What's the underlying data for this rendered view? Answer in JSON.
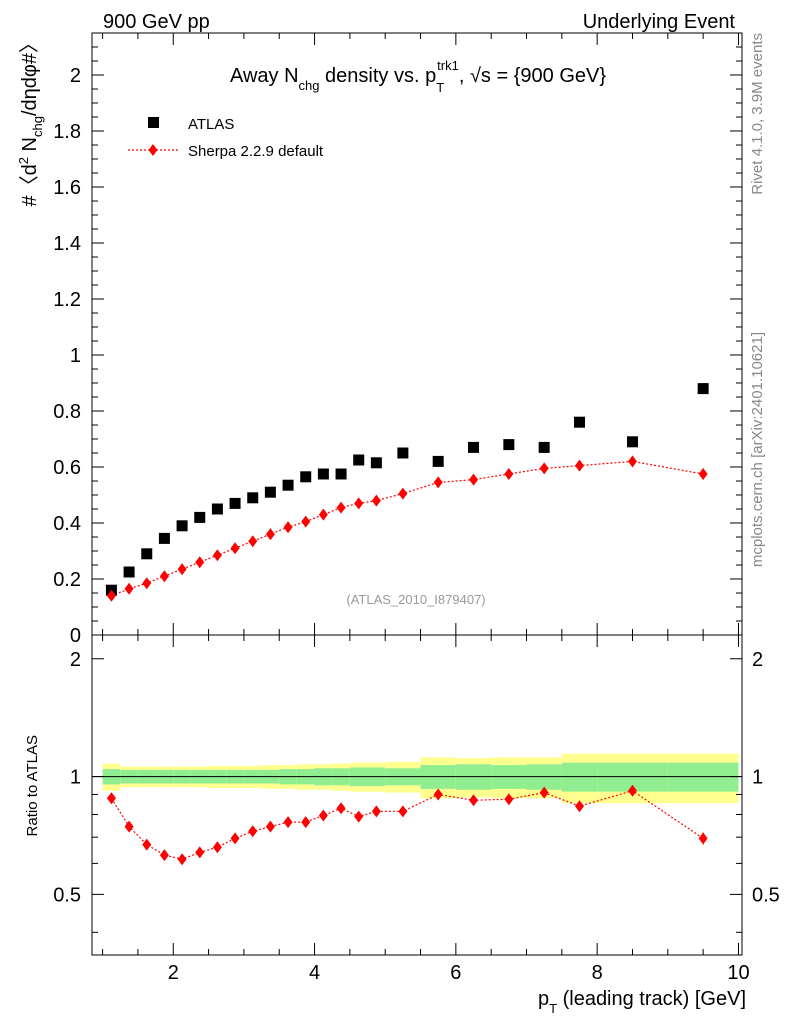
{
  "header": {
    "left": "900 GeV pp",
    "right": "Underlying Event"
  },
  "side_text": {
    "rivet": "Rivet 4.1.0,  3.9M events",
    "mcplots": "mcplots.cern.ch [arXiv:2401.10621]"
  },
  "chart_data": {
    "type": "scatter",
    "title": {
      "pre": "Away N",
      "nsub": "chg",
      "mid": " density vs. p",
      "psup": "trk1",
      "psub": "T",
      "post": ", √s = {900 GeV}"
    },
    "ylabel": {
      "pre": "#〈d",
      "sup": "2",
      "mid": " N",
      "sub": "chg",
      "post": "/dηdφ#〉"
    },
    "xlabel": {
      "p": "p",
      "sub": "T",
      "rest": " (leading track) [GeV]"
    },
    "ratio_ylabel": "Ratio to ATLAS",
    "watermark": "(ATLAS_2010_I879407)",
    "xlim": [
      0.85,
      10.05
    ],
    "ylim": [
      0,
      2.15
    ],
    "ratio_ylim": [
      0.35,
      2.3
    ],
    "x_ticks": [
      2,
      4,
      6,
      8,
      10
    ],
    "y_ticks": [
      0,
      0.2,
      0.4,
      0.6,
      0.8,
      1,
      1.2,
      1.4,
      1.6,
      1.8,
      2
    ],
    "ratio_ticks": [
      0.5,
      1,
      2
    ],
    "legend": [
      {
        "name": "ATLAS",
        "marker": "square",
        "color": "#000000"
      },
      {
        "name": "Sherpa 2.2.9 default",
        "marker": "diamond",
        "color": "#ff0000"
      }
    ],
    "bins": [
      [
        1.0,
        1.25
      ],
      [
        1.25,
        1.5
      ],
      [
        1.5,
        1.75
      ],
      [
        1.75,
        2.0
      ],
      [
        2.0,
        2.25
      ],
      [
        2.25,
        2.5
      ],
      [
        2.5,
        2.75
      ],
      [
        2.75,
        3.0
      ],
      [
        3.0,
        3.25
      ],
      [
        3.25,
        3.5
      ],
      [
        3.5,
        3.75
      ],
      [
        3.75,
        4.0
      ],
      [
        4.0,
        4.25
      ],
      [
        4.25,
        4.5
      ],
      [
        4.5,
        4.75
      ],
      [
        4.75,
        5.0
      ],
      [
        5.0,
        5.5
      ],
      [
        5.5,
        6.0
      ],
      [
        6.0,
        6.5
      ],
      [
        6.5,
        7.0
      ],
      [
        7.0,
        7.5
      ],
      [
        7.5,
        8.0
      ],
      [
        8.0,
        9.0
      ],
      [
        9.0,
        10.0
      ]
    ],
    "x": [
      1.125,
      1.375,
      1.625,
      1.875,
      2.125,
      2.375,
      2.625,
      2.875,
      3.125,
      3.375,
      3.625,
      3.875,
      4.125,
      4.375,
      4.625,
      4.875,
      5.25,
      5.75,
      6.25,
      6.75,
      7.25,
      7.75,
      8.5,
      9.5
    ],
    "series": [
      {
        "name": "ATLAS",
        "values": [
          0.16,
          0.225,
          0.29,
          0.345,
          0.39,
          0.42,
          0.45,
          0.47,
          0.49,
          0.51,
          0.535,
          0.565,
          0.575,
          0.575,
          0.625,
          0.615,
          0.65,
          0.62,
          0.67,
          0.68,
          0.67,
          0.76,
          0.69,
          0.88
        ]
      },
      {
        "name": "Sherpa 2.2.9 default",
        "values": [
          0.14,
          0.165,
          0.185,
          0.21,
          0.235,
          0.26,
          0.285,
          0.31,
          0.335,
          0.36,
          0.385,
          0.405,
          0.43,
          0.455,
          0.47,
          0.48,
          0.505,
          0.545,
          0.555,
          0.575,
          0.595,
          0.605,
          0.62,
          0.575
        ],
        "errors": [
          0.012,
          0.008,
          0.006,
          0.006,
          0.006,
          0.006,
          0.006,
          0.006,
          0.006,
          0.006,
          0.006,
          0.006,
          0.006,
          0.006,
          0.006,
          0.006,
          0.006,
          0.008,
          0.008,
          0.01,
          0.01,
          0.012,
          0.012,
          0.02
        ]
      }
    ],
    "ratio": {
      "values": [
        0.88,
        0.745,
        0.67,
        0.63,
        0.615,
        0.64,
        0.66,
        0.695,
        0.725,
        0.745,
        0.765,
        0.765,
        0.795,
        0.83,
        0.79,
        0.815,
        0.815,
        0.9,
        0.87,
        0.875,
        0.91,
        0.84,
        0.92,
        0.695
      ],
      "errors": [
        0.015,
        0.012,
        0.01,
        0.01,
        0.01,
        0.01,
        0.01,
        0.01,
        0.01,
        0.01,
        0.01,
        0.01,
        0.012,
        0.012,
        0.012,
        0.012,
        0.012,
        0.015,
        0.015,
        0.015,
        0.015,
        0.015,
        0.015,
        0.025
      ],
      "band_stat": [
        0.045,
        0.04,
        0.04,
        0.04,
        0.04,
        0.04,
        0.04,
        0.04,
        0.04,
        0.04,
        0.045,
        0.045,
        0.05,
        0.05,
        0.055,
        0.055,
        0.05,
        0.07,
        0.075,
        0.07,
        0.075,
        0.085,
        0.085,
        0.085
      ],
      "band_total": [
        0.08,
        0.06,
        0.06,
        0.06,
        0.06,
        0.06,
        0.065,
        0.065,
        0.065,
        0.07,
        0.07,
        0.075,
        0.075,
        0.08,
        0.085,
        0.085,
        0.09,
        0.12,
        0.115,
        0.12,
        0.12,
        0.145,
        0.145,
        0.145
      ]
    },
    "colors": {
      "band_stat": "#90ee90",
      "band_total": "#ffff90",
      "data": "#000000",
      "mc": "#ff0000"
    }
  }
}
